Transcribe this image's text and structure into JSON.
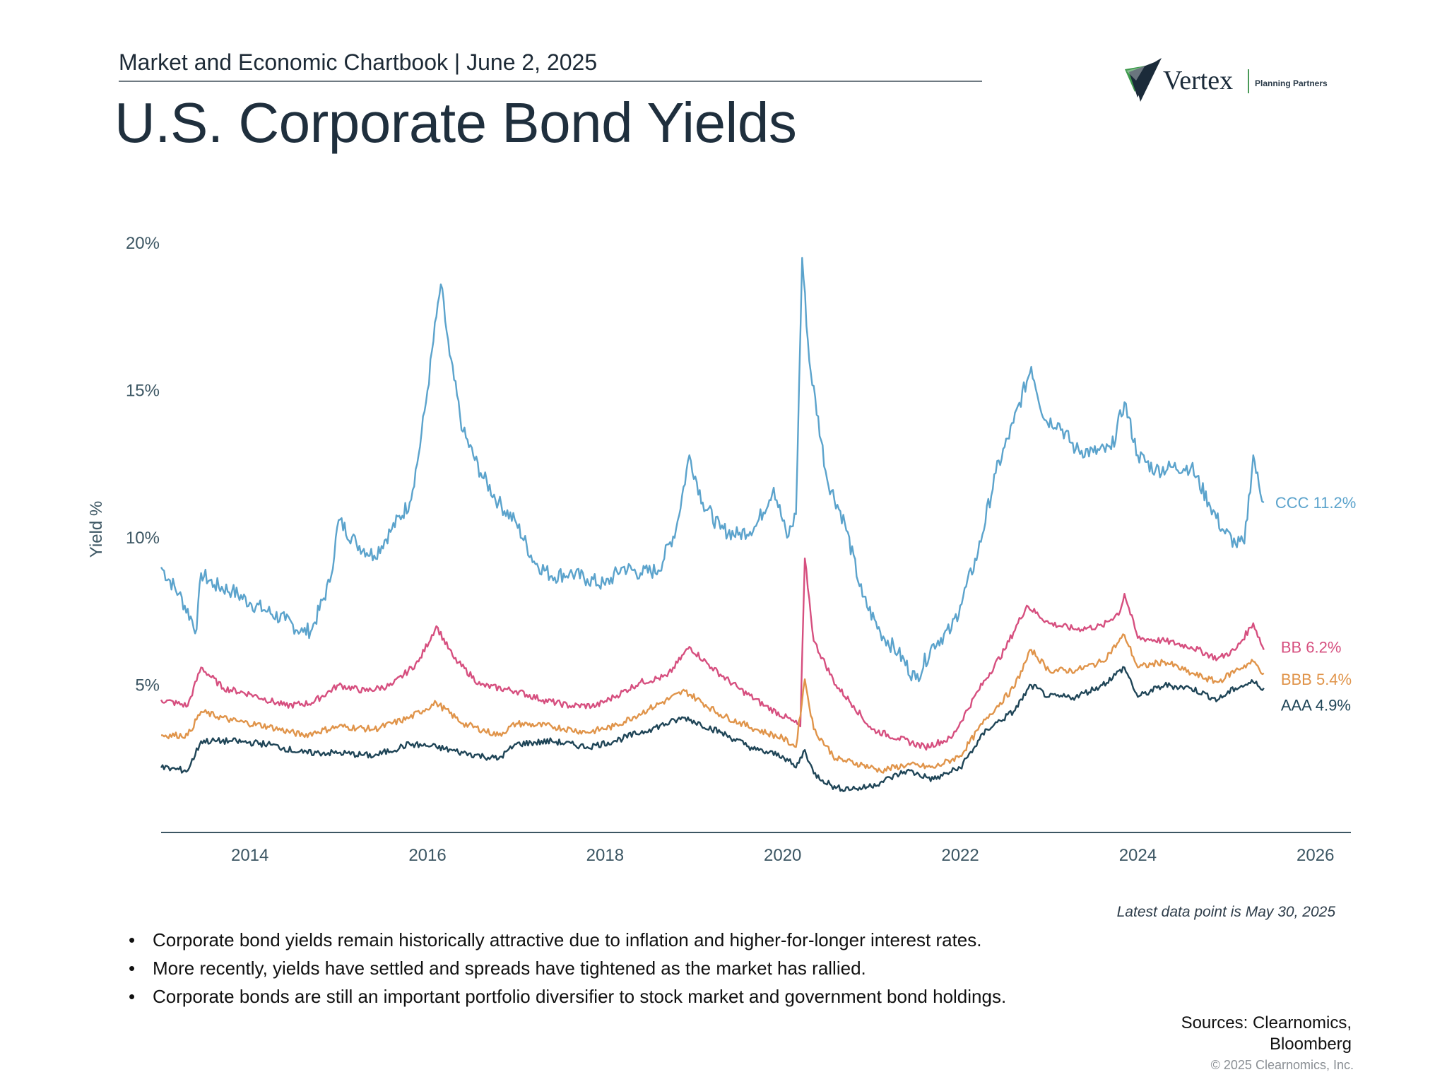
{
  "header": {
    "chartbook": "Market and Economic Chartbook | June 2, 2025",
    "title": "U.S. Corporate Bond Yields"
  },
  "logo": {
    "name": "Vertex",
    "tagline": "Planning Partners"
  },
  "colors": {
    "ccc": "#5ba3cc",
    "bb": "#d64f7f",
    "bbb": "#e0944a",
    "aaa": "#1f4557",
    "axis": "#3c5663",
    "title": "#1f2f3d"
  },
  "chart_data": {
    "type": "line",
    "ylabel": "Yield %",
    "xlabel": "",
    "ylim": [
      0,
      20
    ],
    "xlim": [
      2013.0,
      2026.4
    ],
    "yticks": [
      {
        "value": 5,
        "label": "5%"
      },
      {
        "value": 10,
        "label": "10%"
      },
      {
        "value": 15,
        "label": "15%"
      },
      {
        "value": 20,
        "label": "20%"
      }
    ],
    "xticks": [
      {
        "value": 2014,
        "label": "2014"
      },
      {
        "value": 2016,
        "label": "2016"
      },
      {
        "value": 2018,
        "label": "2018"
      },
      {
        "value": 2020,
        "label": "2020"
      },
      {
        "value": 2022,
        "label": "2022"
      },
      {
        "value": 2024,
        "label": "2024"
      },
      {
        "value": 2026,
        "label": "2026"
      }
    ],
    "grid": false,
    "series": [
      {
        "name": "CCC",
        "label": "CCC 11.2%",
        "color": "#5ba3cc",
        "points": [
          [
            2013.0,
            9.0
          ],
          [
            2013.2,
            8.1
          ],
          [
            2013.4,
            6.9
          ],
          [
            2013.45,
            8.8
          ],
          [
            2013.6,
            8.4
          ],
          [
            2013.8,
            8.2
          ],
          [
            2014.0,
            7.8
          ],
          [
            2014.2,
            7.5
          ],
          [
            2014.4,
            7.2
          ],
          [
            2014.6,
            6.8
          ],
          [
            2014.7,
            6.9
          ],
          [
            2014.9,
            8.5
          ],
          [
            2015.0,
            10.6
          ],
          [
            2015.2,
            9.8
          ],
          [
            2015.4,
            9.4
          ],
          [
            2015.6,
            10.3
          ],
          [
            2015.8,
            11.2
          ],
          [
            2015.9,
            12.8
          ],
          [
            2016.0,
            15.0
          ],
          [
            2016.1,
            17.5
          ],
          [
            2016.15,
            18.6
          ],
          [
            2016.25,
            16.2
          ],
          [
            2016.4,
            13.6
          ],
          [
            2016.6,
            12.2
          ],
          [
            2016.8,
            11.2
          ],
          [
            2017.0,
            10.5
          ],
          [
            2017.2,
            9.2
          ],
          [
            2017.4,
            8.7
          ],
          [
            2017.6,
            8.8
          ],
          [
            2017.8,
            8.6
          ],
          [
            2018.0,
            8.4
          ],
          [
            2018.2,
            9.0
          ],
          [
            2018.4,
            8.8
          ],
          [
            2018.6,
            8.9
          ],
          [
            2018.8,
            10.3
          ],
          [
            2018.95,
            12.8
          ],
          [
            2019.1,
            11.2
          ],
          [
            2019.3,
            10.3
          ],
          [
            2019.5,
            10.1
          ],
          [
            2019.7,
            10.4
          ],
          [
            2019.9,
            11.7
          ],
          [
            2020.05,
            10.0
          ],
          [
            2020.15,
            10.8
          ],
          [
            2020.22,
            19.5
          ],
          [
            2020.3,
            16.0
          ],
          [
            2020.5,
            12.0
          ],
          [
            2020.7,
            10.5
          ],
          [
            2020.9,
            8.0
          ],
          [
            2021.1,
            6.8
          ],
          [
            2021.3,
            6.1
          ],
          [
            2021.5,
            5.2
          ],
          [
            2021.7,
            6.4
          ],
          [
            2021.9,
            6.9
          ],
          [
            2022.0,
            7.7
          ],
          [
            2022.2,
            9.5
          ],
          [
            2022.4,
            12.2
          ],
          [
            2022.6,
            13.9
          ],
          [
            2022.8,
            15.8
          ],
          [
            2022.95,
            14.0
          ],
          [
            2023.1,
            13.9
          ],
          [
            2023.3,
            13.0
          ],
          [
            2023.5,
            12.9
          ],
          [
            2023.7,
            13.0
          ],
          [
            2023.85,
            14.6
          ],
          [
            2024.0,
            12.8
          ],
          [
            2024.2,
            12.3
          ],
          [
            2024.4,
            12.4
          ],
          [
            2024.6,
            12.4
          ],
          [
            2024.8,
            11.2
          ],
          [
            2024.95,
            10.3
          ],
          [
            2025.1,
            9.8
          ],
          [
            2025.2,
            9.8
          ],
          [
            2025.3,
            12.8
          ],
          [
            2025.38,
            11.5
          ],
          [
            2025.42,
            11.2
          ]
        ]
      },
      {
        "name": "BB",
        "label": "BB 6.2%",
        "color": "#d64f7f",
        "points": [
          [
            2013.0,
            4.5
          ],
          [
            2013.3,
            4.3
          ],
          [
            2013.45,
            5.6
          ],
          [
            2013.7,
            4.9
          ],
          [
            2014.0,
            4.7
          ],
          [
            2014.4,
            4.3
          ],
          [
            2014.7,
            4.4
          ],
          [
            2015.0,
            5.0
          ],
          [
            2015.3,
            4.8
          ],
          [
            2015.6,
            5.0
          ],
          [
            2015.9,
            5.8
          ],
          [
            2016.1,
            7.0
          ],
          [
            2016.3,
            5.9
          ],
          [
            2016.6,
            5.0
          ],
          [
            2017.0,
            4.8
          ],
          [
            2017.3,
            4.5
          ],
          [
            2017.6,
            4.3
          ],
          [
            2017.9,
            4.3
          ],
          [
            2018.1,
            4.6
          ],
          [
            2018.4,
            5.1
          ],
          [
            2018.7,
            5.3
          ],
          [
            2018.95,
            6.3
          ],
          [
            2019.2,
            5.6
          ],
          [
            2019.5,
            4.9
          ],
          [
            2019.8,
            4.3
          ],
          [
            2020.1,
            3.8
          ],
          [
            2020.2,
            3.6
          ],
          [
            2020.25,
            9.3
          ],
          [
            2020.35,
            6.5
          ],
          [
            2020.6,
            5.0
          ],
          [
            2020.8,
            4.3
          ],
          [
            2021.0,
            3.5
          ],
          [
            2021.3,
            3.2
          ],
          [
            2021.6,
            2.9
          ],
          [
            2021.9,
            3.2
          ],
          [
            2022.2,
            4.8
          ],
          [
            2022.5,
            6.2
          ],
          [
            2022.75,
            7.7
          ],
          [
            2023.0,
            7.1
          ],
          [
            2023.3,
            6.9
          ],
          [
            2023.6,
            7.0
          ],
          [
            2023.8,
            7.5
          ],
          [
            2023.85,
            8.1
          ],
          [
            2024.0,
            6.6
          ],
          [
            2024.3,
            6.5
          ],
          [
            2024.6,
            6.3
          ],
          [
            2024.9,
            5.9
          ],
          [
            2025.1,
            6.2
          ],
          [
            2025.3,
            7.1
          ],
          [
            2025.42,
            6.2
          ]
        ]
      },
      {
        "name": "BBB",
        "label": "BBB 5.4%",
        "color": "#e0944a",
        "points": [
          [
            2013.0,
            3.3
          ],
          [
            2013.3,
            3.3
          ],
          [
            2013.45,
            4.1
          ],
          [
            2013.8,
            3.8
          ],
          [
            2014.2,
            3.6
          ],
          [
            2014.6,
            3.3
          ],
          [
            2015.0,
            3.6
          ],
          [
            2015.4,
            3.5
          ],
          [
            2015.8,
            3.9
          ],
          [
            2016.1,
            4.4
          ],
          [
            2016.4,
            3.7
          ],
          [
            2016.8,
            3.3
          ],
          [
            2017.0,
            3.7
          ],
          [
            2017.4,
            3.6
          ],
          [
            2017.8,
            3.4
          ],
          [
            2018.1,
            3.6
          ],
          [
            2018.5,
            4.2
          ],
          [
            2018.9,
            4.8
          ],
          [
            2019.3,
            4.0
          ],
          [
            2019.7,
            3.5
          ],
          [
            2020.0,
            3.2
          ],
          [
            2020.15,
            2.9
          ],
          [
            2020.25,
            5.2
          ],
          [
            2020.35,
            3.5
          ],
          [
            2020.6,
            2.5
          ],
          [
            2020.9,
            2.3
          ],
          [
            2021.1,
            2.1
          ],
          [
            2021.4,
            2.3
          ],
          [
            2021.7,
            2.2
          ],
          [
            2022.0,
            2.6
          ],
          [
            2022.3,
            3.9
          ],
          [
            2022.6,
            4.9
          ],
          [
            2022.8,
            6.2
          ],
          [
            2023.0,
            5.5
          ],
          [
            2023.3,
            5.5
          ],
          [
            2023.6,
            5.8
          ],
          [
            2023.85,
            6.7
          ],
          [
            2024.0,
            5.6
          ],
          [
            2024.3,
            5.8
          ],
          [
            2024.6,
            5.4
          ],
          [
            2024.9,
            5.1
          ],
          [
            2025.1,
            5.5
          ],
          [
            2025.3,
            5.8
          ],
          [
            2025.42,
            5.4
          ]
        ]
      },
      {
        "name": "AAA",
        "label": "AAA 4.9%",
        "color": "#1f4557",
        "points": [
          [
            2013.0,
            2.2
          ],
          [
            2013.3,
            2.1
          ],
          [
            2013.45,
            3.1
          ],
          [
            2013.8,
            3.1
          ],
          [
            2014.2,
            3.0
          ],
          [
            2014.6,
            2.7
          ],
          [
            2015.0,
            2.7
          ],
          [
            2015.4,
            2.6
          ],
          [
            2015.8,
            3.0
          ],
          [
            2016.1,
            2.9
          ],
          [
            2016.4,
            2.7
          ],
          [
            2016.8,
            2.5
          ],
          [
            2017.0,
            3.0
          ],
          [
            2017.4,
            3.1
          ],
          [
            2017.8,
            2.9
          ],
          [
            2018.1,
            3.1
          ],
          [
            2018.5,
            3.5
          ],
          [
            2018.9,
            3.9
          ],
          [
            2019.3,
            3.4
          ],
          [
            2019.7,
            2.8
          ],
          [
            2020.0,
            2.6
          ],
          [
            2020.15,
            2.2
          ],
          [
            2020.25,
            2.8
          ],
          [
            2020.35,
            2.0
          ],
          [
            2020.6,
            1.5
          ],
          [
            2020.9,
            1.5
          ],
          [
            2021.1,
            1.7
          ],
          [
            2021.4,
            2.1
          ],
          [
            2021.7,
            1.8
          ],
          [
            2022.0,
            2.2
          ],
          [
            2022.3,
            3.5
          ],
          [
            2022.6,
            4.1
          ],
          [
            2022.8,
            5.0
          ],
          [
            2023.0,
            4.6
          ],
          [
            2023.3,
            4.6
          ],
          [
            2023.6,
            5.0
          ],
          [
            2023.85,
            5.6
          ],
          [
            2024.0,
            4.6
          ],
          [
            2024.3,
            5.0
          ],
          [
            2024.6,
            4.9
          ],
          [
            2024.9,
            4.5
          ],
          [
            2025.1,
            4.9
          ],
          [
            2025.3,
            5.1
          ],
          [
            2025.42,
            4.9
          ]
        ]
      }
    ]
  },
  "note": "Latest data point is May 30, 2025",
  "bullets": [
    "Corporate bond yields remain historically attractive due to inflation and higher-for-longer interest rates.",
    "More recently, yields have settled and spreads have tightened as the market has rallied.",
    "Corporate bonds are still an important portfolio diversifier to stock market and government bond holdings."
  ],
  "bullet_glyph": "•",
  "sources": {
    "line1": "Sources: Clearnomics,",
    "line2": "Bloomberg"
  },
  "copyright": "© 2025 Clearnomics, Inc."
}
